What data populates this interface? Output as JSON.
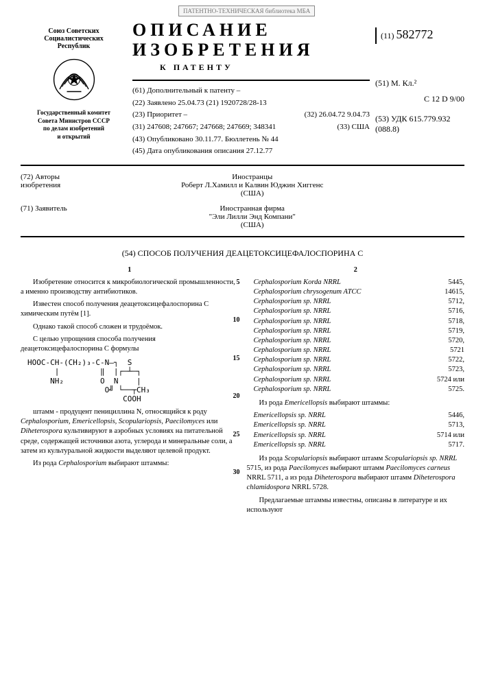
{
  "stamp": "ПАТЕНТНО-ТЕХНИЧЕСКАЯ библиотека МБА",
  "header": {
    "issuer1": "Союз Советских",
    "issuer2": "Социалистических",
    "issuer3": "Республик",
    "committee1": "Государственный комитет",
    "committee2": "Совета Министров СССР",
    "committee3": "по делам изобретений",
    "committee4": "и открытий",
    "title1": "ОПИСАНИЕ",
    "title2": "ИЗОБРЕТЕНИЯ",
    "title3": "К ПАТЕНТУ",
    "patent_label": "(11)",
    "patent_number": "582772"
  },
  "bib": {
    "f61": "(61) Дополнительный к патенту   –",
    "f22": "(22) Заявлено 25.04.73   (21)   1920728/28-13",
    "f23": "(23) Приоритет   –",
    "f32": "(32) 26.04.72   9.04.73",
    "f31": "(31) 247608; 247667; 247668; 247669; 348341",
    "f33": "(33) США",
    "f43": "(43) Опубликовано 30.11.77. Бюллетень № 44",
    "f45": "(45) Дата опубликования описания 27.12.77",
    "f51_label": "(51) М. Кл.²",
    "f51_value": "C 12 D 9/00",
    "f53_label": "(53) УДК",
    "f53_value": "615.779.932 (088.8)"
  },
  "authors": {
    "f72_label": "(72) Авторы изобретения",
    "f72_pre": "Иностранцы",
    "f72_value": "Роберт Л.Хамилл и Калвин Юджин Хиггенс",
    "f72_country": "(США)",
    "f71_label": "(71) Заявитель",
    "f71_pre": "Иностранная фирма",
    "f71_value": "\"Эли Лилли Энд Компани\"",
    "f71_country": "(США)"
  },
  "title54": "(54) СПОСОБ ПОЛУЧЕНИЯ ДЕАЦЕТОКСИЦЕФАЛОСПОРИНА С",
  "col1": {
    "num": "1",
    "p1": "Изобретение относится к микробиологической промышленности, а именно производству антибиотиков.",
    "p2": "Известен способ получения деацетоксицефалоспорина С химическим путём [1].",
    "p3": "Однако такой способ сложен и трудоёмок.",
    "p4": "С целью упрощения способа получения деацетоксицефалоспорина С формулы",
    "formula": "HOOC-CH-(CH₂)₃-C-N—┐  S\n      |         ‖  |┌─┴─┐\n     NH₂        O  N    |\n                 O╝ └──┬CH₃\n                     COOH",
    "p5_a": "штамм - продуцент пенициллина N, относящийся к роду ",
    "p5_b": "Cephalosporium, Emericellopsis, Scopulariopsis, Paecilomyces",
    "p5_c": " или ",
    "p5_d": "Diheterospora",
    "p5_e": " культивируют в аэробных условиях на питательной среде, содержащей источники азота, углерода и минеральные соли, а затем из культуральной жидкости выделяют целевой продукт.",
    "p6_a": "Из рода ",
    "p6_b": "Cephalosporium",
    "p6_c": " выбирают штаммы:"
  },
  "col2": {
    "num": "2",
    "ceph": [
      {
        "n": "Cephalosporium Korda NRRL",
        "v": "5445,"
      },
      {
        "n": "Cephalosporium chrysogenum ATCC",
        "v": "14615,"
      },
      {
        "n": "Cephalosporium sp. NRRL",
        "v": "5712,"
      },
      {
        "n": "Cephalosporium sp. NRRL",
        "v": "5716,"
      },
      {
        "n": "Cephalosporium sp. NRRL",
        "v": "5718,"
      },
      {
        "n": "Cephalosporium sp. NRRL",
        "v": "5719,"
      },
      {
        "n": "Cephalosporium sp. NRRL",
        "v": "5720,"
      },
      {
        "n": "Cephalosporium sp. NRRL",
        "v": "5721"
      },
      {
        "n": "Cephalosporium sp. NRRL",
        "v": "5722,"
      },
      {
        "n": "Cephalosporium sp. NRRL",
        "v": "5723,"
      },
      {
        "n": "Cephalosporium sp. NRRL",
        "v": "5724 или"
      },
      {
        "n": "Cephalosporium sp. NRRL",
        "v": "5725."
      }
    ],
    "p1_a": "Из рода ",
    "p1_b": "Emericellopsis",
    "p1_c": " выбирают штаммы:",
    "emer": [
      {
        "n": "Emericellopsis sp. NRRL",
        "v": "5446,"
      },
      {
        "n": "Emericellopsis sp. NRRL",
        "v": "5713,"
      },
      {
        "n": "Emericellopsis sp. NRRL",
        "v": "5714 или"
      },
      {
        "n": "Emericellopsis sp. NRRL",
        "v": "5717."
      }
    ],
    "p2_a": "Из рода ",
    "p2_b": "Scopulariopsis",
    "p2_c": " выбирают штамм ",
    "p2_d": "Scopulariopsis sp. NRRL",
    "p2_e": " 5715, из рода ",
    "p2_f": "Paecilomyces",
    "p2_g": " выбирают штамм ",
    "p2_h": "Paecilomyces carneus",
    "p2_i": " NRRL 5711, а из рода ",
    "p2_j": "Diheterospora",
    "p2_k": " выбирают штамм ",
    "p2_l": "Diheterospora chlamidospora",
    "p2_m": " NRRL 5728.",
    "p3": "Предлагаемые штаммы известны, описаны в литературе и их используют"
  },
  "linenos": [
    "5",
    "10",
    "15",
    "20",
    "25",
    "30"
  ]
}
